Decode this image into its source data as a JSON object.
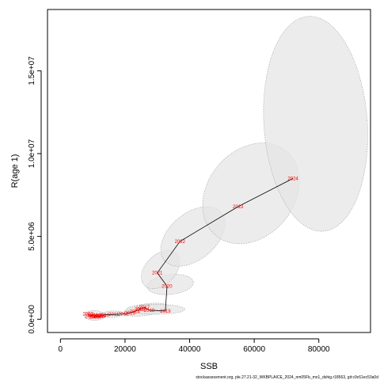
{
  "footer_text": "stockassessment.org, ple.27.21-32_WKBPLAICE_2024_nm05Fb_mo1_dshig.r18563, git:c9c61ec53a0d",
  "chart_data": {
    "type": "scatter",
    "title": "",
    "xlabel": "SSB",
    "ylabel": "R(age 1)",
    "xlim": [
      -4000,
      96000
    ],
    "ylim": [
      -800000,
      18700000
    ],
    "xticks": [
      0,
      20000,
      40000,
      60000,
      80000
    ],
    "xtick_labels": [
      "0",
      "20000",
      "40000",
      "60000",
      "80000"
    ],
    "yticks": [
      0,
      5000000,
      10000000,
      15000000
    ],
    "ytick_labels": [
      "0.0e+00",
      "5.0e+06",
      "1.0e+07",
      "1.5e+07"
    ],
    "grid": false,
    "line_color": "#000000",
    "label_color": "#ff0000",
    "ellipse_fill": "#e6e6e6",
    "ellipse_stroke": "#9e9e9e",
    "points": [
      {
        "year": "2002",
        "ssb": 8500,
        "rec": 320000
      },
      {
        "year": "2003",
        "ssb": 9200,
        "rec": 180000
      },
      {
        "year": "2004",
        "ssb": 10000,
        "rec": 250000
      },
      {
        "year": "2005",
        "ssb": 10500,
        "rec": 130000
      },
      {
        "year": "2006",
        "ssb": 11000,
        "rec": 180000
      },
      {
        "year": "2007",
        "ssb": 11500,
        "rec": 200000
      },
      {
        "year": "2008",
        "ssb": 12000,
        "rec": 150000
      },
      {
        "year": "2009",
        "ssb": 12500,
        "rec": 210000
      },
      {
        "year": "2010",
        "ssb": 13500,
        "rec": 260000
      },
      {
        "year": "2011",
        "ssb": 16500,
        "rec": 290000
      },
      {
        "year": "2012",
        "ssb": 19500,
        "rec": 320000
      },
      {
        "year": "2013",
        "ssb": 21500,
        "rec": 380000
      },
      {
        "year": "2014",
        "ssb": 23000,
        "rec": 470000
      },
      {
        "year": "2015",
        "ssb": 24500,
        "rec": 590000
      },
      {
        "year": "2016",
        "ssb": 25000,
        "rec": 640000
      },
      {
        "year": "2017",
        "ssb": 26000,
        "rec": 720000
      },
      {
        "year": "2018",
        "ssb": 27500,
        "rec": 550000
      },
      {
        "year": "2019",
        "ssb": 32500,
        "rec": 500000
      },
      {
        "year": "2020",
        "ssb": 33000,
        "rec": 2000000
      },
      {
        "year": "2021",
        "ssb": 30000,
        "rec": 2800000
      },
      {
        "year": "2022",
        "ssb": 37000,
        "rec": 4700000
      },
      {
        "year": "2023",
        "ssb": 55000,
        "rec": 6800000
      },
      {
        "year": "2024",
        "ssb": 72000,
        "rec": 8500000
      }
    ],
    "ellipses": [
      {
        "cx": 10500,
        "cy": 230000,
        "rx": 3000,
        "ry": 300000,
        "angle": 0
      },
      {
        "cx": 16000,
        "cy": 300000,
        "rx": 3500,
        "ry": 200000,
        "angle": -3
      },
      {
        "cx": 26500,
        "cy": 580000,
        "rx": 7000,
        "ry": 350000,
        "angle": -8
      },
      {
        "cx": 29500,
        "cy": 600000,
        "rx": 9000,
        "ry": 300000,
        "angle": 0
      },
      {
        "cx": 34000,
        "cy": 2100000,
        "rx": 7200,
        "ry": 600000,
        "angle": -6
      },
      {
        "cx": 31000,
        "cy": 3000000,
        "rx": 7000,
        "ry": 900000,
        "angle": -45
      },
      {
        "cx": 41000,
        "cy": 5000000,
        "rx": 11500,
        "ry": 1400000,
        "angle": -40
      },
      {
        "cx": 59000,
        "cy": 7600000,
        "rx": 17000,
        "ry": 2600000,
        "angle": -50
      },
      {
        "cx": 79000,
        "cy": 11800000,
        "rx": 16000,
        "ry": 6500000,
        "angle": -4
      }
    ]
  }
}
